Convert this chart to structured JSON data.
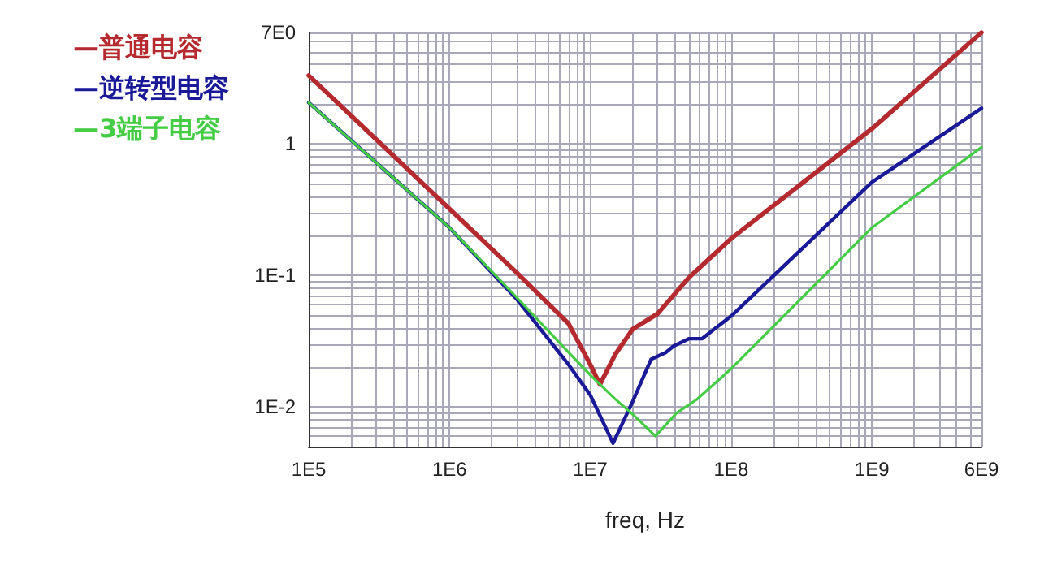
{
  "chart_data": {
    "type": "line",
    "xlabel": "freq, Hz",
    "log": "xy",
    "grid": true,
    "legend": "top left",
    "marker": "none",
    "line_style": "solid",
    "xlim": [
      100000,
      6000000000
    ],
    "ylim": [
      0.005,
      7
    ],
    "xticks": [
      {
        "value": 100000,
        "label": "1E5"
      },
      {
        "value": 200000,
        "label": null
      },
      {
        "value": 300000,
        "label": null
      },
      {
        "value": 400000,
        "label": null
      },
      {
        "value": 500000,
        "label": null
      },
      {
        "value": 600000,
        "label": null
      },
      {
        "value": 700000,
        "label": null
      },
      {
        "value": 800000,
        "label": null
      },
      {
        "value": 900000,
        "label": null
      },
      {
        "value": 1000000,
        "label": "1E6"
      },
      {
        "value": 2000000,
        "label": null
      },
      {
        "value": 3000000,
        "label": null
      },
      {
        "value": 4000000,
        "label": null
      },
      {
        "value": 5000000,
        "label": null
      },
      {
        "value": 6000000,
        "label": null
      },
      {
        "value": 7000000,
        "label": null
      },
      {
        "value": 8000000,
        "label": null
      },
      {
        "value": 9000000,
        "label": null
      },
      {
        "value": 10000000,
        "label": "1E7"
      },
      {
        "value": 20000000,
        "label": null
      },
      {
        "value": 30000000,
        "label": null
      },
      {
        "value": 40000000,
        "label": null
      },
      {
        "value": 50000000,
        "label": null
      },
      {
        "value": 60000000,
        "label": null
      },
      {
        "value": 70000000,
        "label": null
      },
      {
        "value": 80000000,
        "label": null
      },
      {
        "value": 90000000,
        "label": null
      },
      {
        "value": 100000000,
        "label": "1E8"
      },
      {
        "value": 200000000,
        "label": null
      },
      {
        "value": 300000000,
        "label": null
      },
      {
        "value": 400000000,
        "label": null
      },
      {
        "value": 500000000,
        "label": null
      },
      {
        "value": 600000000,
        "label": null
      },
      {
        "value": 700000000,
        "label": null
      },
      {
        "value": 800000000,
        "label": null
      },
      {
        "value": 900000000,
        "label": null
      },
      {
        "value": 1000000000,
        "label": "1E9"
      },
      {
        "value": 2000000000,
        "label": null
      },
      {
        "value": 3000000000,
        "label": null
      },
      {
        "value": 4000000000,
        "label": null
      },
      {
        "value": 5000000000,
        "label": null
      },
      {
        "value": 6000000000,
        "label": "6E9"
      }
    ],
    "yticks": [
      {
        "value": 0.006,
        "label": null
      },
      {
        "value": 0.007,
        "label": null
      },
      {
        "value": 0.008,
        "label": null
      },
      {
        "value": 0.009,
        "label": null
      },
      {
        "value": 0.01,
        "label": "1E-2"
      },
      {
        "value": 0.02,
        "label": null
      },
      {
        "value": 0.03,
        "label": null
      },
      {
        "value": 0.04,
        "label": null
      },
      {
        "value": 0.05,
        "label": null
      },
      {
        "value": 0.06,
        "label": null
      },
      {
        "value": 0.07,
        "label": null
      },
      {
        "value": 0.08,
        "label": null
      },
      {
        "value": 0.09,
        "label": null
      },
      {
        "value": 0.1,
        "label": "1E-1"
      },
      {
        "value": 0.2,
        "label": null
      },
      {
        "value": 0.3,
        "label": null
      },
      {
        "value": 0.4,
        "label": null
      },
      {
        "value": 0.5,
        "label": null
      },
      {
        "value": 0.6,
        "label": null
      },
      {
        "value": 0.7,
        "label": null
      },
      {
        "value": 0.8,
        "label": null
      },
      {
        "value": 0.9,
        "label": null
      },
      1,
      {
        "value": 2,
        "label": null
      },
      {
        "value": 3,
        "label": null
      },
      {
        "value": 4,
        "label": null
      },
      {
        "value": 5,
        "label": null
      },
      {
        "value": 6,
        "label": null
      },
      {
        "value": 7,
        "label": "7E0"
      }
    ],
    "series": [
      {
        "name": "—普通电容",
        "color": "#b52a2e",
        "x": [
          100000,
          1000000,
          3000000,
          7000000,
          10000000,
          11700000,
          15000000,
          20000000,
          30000000,
          50000000,
          100000000,
          1000000000,
          6000000000
        ],
        "values": [
          3.3,
          0.32,
          0.105,
          0.043,
          0.021,
          0.0148,
          0.025,
          0.039,
          0.051,
          0.096,
          0.19,
          1.3,
          7
        ]
      },
      {
        "name": "—逆转型电容",
        "color": "#1a1a99",
        "x": [
          100000,
          1000000,
          3000000,
          7000000,
          10000000,
          14500000,
          20000000,
          27000000,
          34500000,
          39000000,
          50000000,
          62000000,
          100000000,
          1000000000,
          6000000000
        ],
        "values": [
          2.05,
          0.23,
          0.066,
          0.021,
          0.0123,
          0.0053,
          0.011,
          0.023,
          0.026,
          0.029,
          0.033,
          0.033,
          0.049,
          0.51,
          1.86
        ]
      },
      {
        "name": "—3端子电容",
        "color": "#44cc44",
        "x": [
          100000,
          1000000,
          3000000,
          7000000,
          10000000,
          15000000,
          20000000,
          29000000,
          41000000,
          57000000,
          100000000,
          1000000000,
          6000000000
        ],
        "values": [
          2.05,
          0.23,
          0.068,
          0.026,
          0.0175,
          0.0115,
          0.0088,
          0.006,
          0.009,
          0.0114,
          0.0195,
          0.23,
          0.94
        ]
      }
    ]
  }
}
